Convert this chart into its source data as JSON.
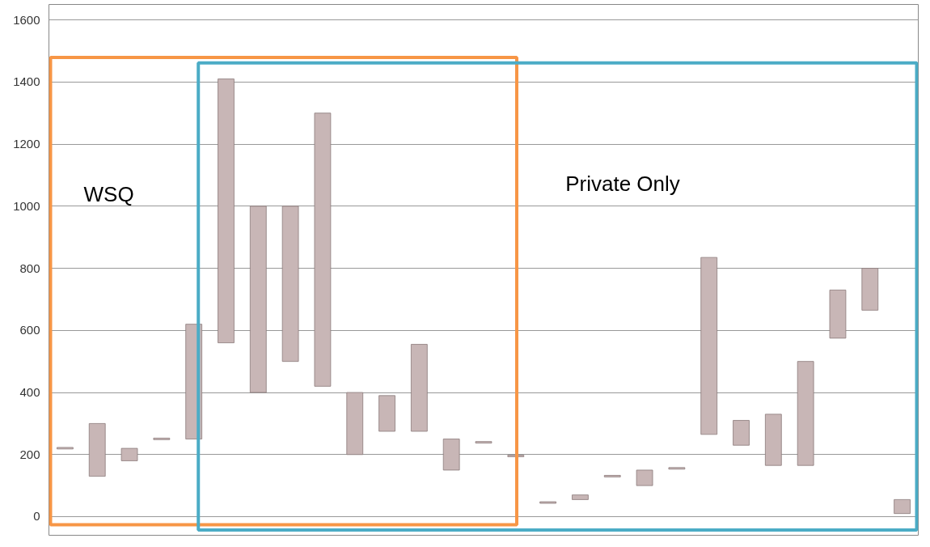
{
  "chart_data": {
    "type": "bar",
    "categories": [
      null,
      null,
      null,
      null,
      null,
      null,
      null,
      null,
      null,
      null,
      null,
      null,
      null,
      null,
      null,
      null,
      null,
      null,
      null,
      null,
      null,
      null,
      null,
      null,
      null,
      null,
      null
    ],
    "base": [
      218,
      130,
      180,
      248,
      250,
      560,
      400,
      500,
      420,
      200,
      275,
      275,
      150,
      237,
      193,
      43,
      55,
      128,
      100,
      153,
      265,
      230,
      165,
      165,
      575,
      665,
      10
    ],
    "values": [
      5,
      170,
      40,
      5,
      370,
      850,
      600,
      500,
      880,
      200,
      115,
      280,
      100,
      5,
      5,
      5,
      15,
      5,
      50,
      5,
      570,
      80,
      165,
      335,
      155,
      135,
      45
    ],
    "color": "#c8b6b6",
    "ylim": [
      -60,
      1650
    ],
    "yticks": [
      0,
      200,
      400,
      600,
      800,
      1000,
      1200,
      1400,
      1600
    ],
    "grid": "y",
    "tick_labels": "y",
    "annotations": [
      "WSQ",
      "Private Only"
    ]
  }
}
